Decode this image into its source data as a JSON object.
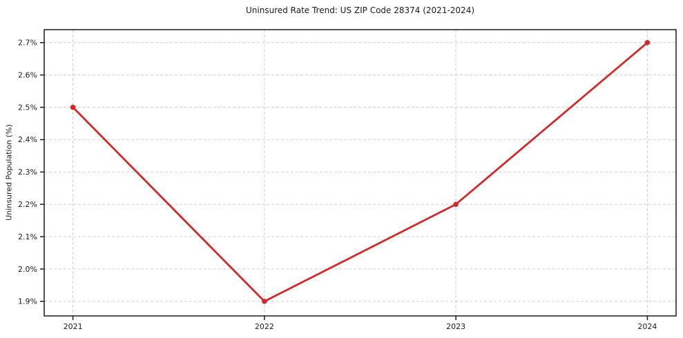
{
  "chart_data": {
    "type": "line",
    "title": "Uninsured Rate Trend: US ZIP Code 28374 (2021-2024)",
    "ylabel": "Uninsured Population (%)",
    "xlabel": "",
    "x": [
      2021,
      2022,
      2023,
      2024
    ],
    "values": [
      2.5,
      1.9,
      2.2,
      2.7
    ],
    "xlim": [
      2020.85,
      2024.15
    ],
    "ylim": [
      1.855,
      2.74
    ],
    "xticks": {
      "values": [
        2021,
        2022,
        2023,
        2024
      ],
      "labels": [
        "2021",
        "2022",
        "2023",
        "2024"
      ]
    },
    "yticks": {
      "values": [
        1.9,
        2.0,
        2.1,
        2.2,
        2.3,
        2.4,
        2.5,
        2.6,
        2.7
      ],
      "labels": [
        "1.9%",
        "2.0%",
        "2.1%",
        "2.2%",
        "2.3%",
        "2.4%",
        "2.5%",
        "2.6%",
        "2.7%"
      ]
    },
    "grid": true,
    "grid_style": "dashed",
    "legend": false,
    "line_color": "#d62728",
    "marker": "circle",
    "marker_size": 7.5,
    "line_width": 2.8,
    "grid_color": "#cdcdcd",
    "frame_color": "#1a1a1a",
    "text_color": "#1a1a1a",
    "background": "#ffffff"
  }
}
